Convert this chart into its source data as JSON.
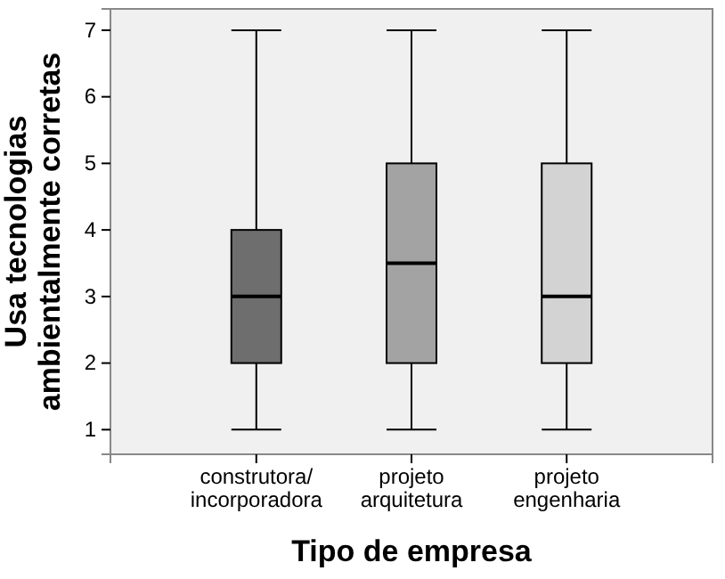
{
  "chart_data": {
    "type": "box",
    "xlabel": "Tipo de empresa",
    "ylabel": "Usa tecnologias\nambientalmente corretas",
    "categories": [
      "construtora/\nincorporadora",
      "projeto\narquitetura",
      "projeto\nengenharia"
    ],
    "boxes": [
      {
        "low": 1,
        "q1": 2,
        "median": 3,
        "q3": 4,
        "high": 7
      },
      {
        "low": 1,
        "q1": 2,
        "median": 3.5,
        "q3": 5,
        "high": 7
      },
      {
        "low": 1,
        "q1": 2,
        "median": 3,
        "q3": 5,
        "high": 7
      }
    ],
    "colors": [
      "#6e6e6e",
      "#a3a3a3",
      "#d3d3d3"
    ],
    "ylim": [
      0.63,
      7.32
    ],
    "yticks": [
      1,
      2,
      3,
      4,
      5,
      6,
      7
    ]
  }
}
